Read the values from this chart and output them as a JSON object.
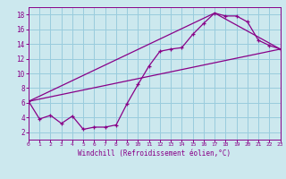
{
  "xlabel": "Windchill (Refroidissement éolien,°C)",
  "xlim": [
    0,
    23
  ],
  "ylim": [
    1,
    19
  ],
  "yticks": [
    2,
    4,
    6,
    8,
    10,
    12,
    14,
    16,
    18
  ],
  "xticks": [
    0,
    1,
    2,
    3,
    4,
    5,
    6,
    7,
    8,
    9,
    10,
    11,
    12,
    13,
    14,
    15,
    16,
    17,
    18,
    19,
    20,
    21,
    22,
    23
  ],
  "bg_color": "#cce8ee",
  "line_color": "#880088",
  "grid_color": "#99ccdd",
  "line1_x": [
    0,
    1,
    2,
    3,
    4,
    5,
    6,
    7,
    8,
    9,
    10,
    11,
    12,
    13,
    14,
    15,
    16,
    17,
    18,
    19,
    20,
    21,
    22,
    23
  ],
  "line1_y": [
    6.2,
    3.8,
    4.3,
    3.2,
    4.2,
    2.4,
    2.7,
    2.7,
    3.0,
    5.9,
    8.5,
    11.0,
    13.0,
    13.3,
    13.5,
    15.3,
    16.8,
    18.2,
    17.8,
    17.8,
    17.0,
    14.5,
    13.8,
    13.3
  ],
  "line2_x": [
    0,
    23
  ],
  "line2_y": [
    6.2,
    13.3
  ],
  "line3_x": [
    0,
    17,
    23
  ],
  "line3_y": [
    6.2,
    18.2,
    13.3
  ]
}
